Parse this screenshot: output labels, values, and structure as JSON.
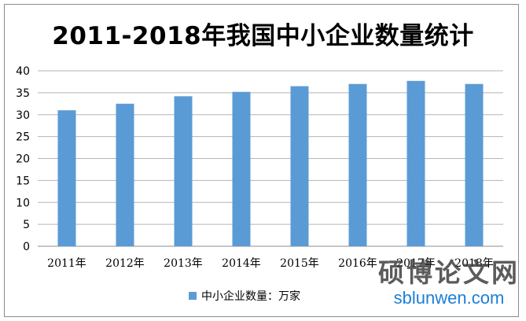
{
  "chart_data": {
    "type": "bar",
    "title": "2011-2018年我国中小企业数量统计",
    "categories": [
      "2011年",
      "2012年",
      "2013年",
      "2014年",
      "2015年",
      "2016年",
      "2017年",
      "2018年"
    ],
    "series": [
      {
        "name": "中小企业数量：万家",
        "values": [
          31.0,
          32.5,
          34.2,
          35.2,
          36.5,
          37.0,
          37.7,
          37.0
        ]
      }
    ],
    "ylim": [
      0,
      40
    ],
    "yticks": [
      0,
      5,
      10,
      15,
      20,
      25,
      30,
      35,
      40
    ],
    "grid": true,
    "legend_position": "bottom",
    "bar_color": "#5b9bd5"
  },
  "watermark": {
    "chinese": "硕博论文网",
    "url": "sblunwen.com"
  }
}
